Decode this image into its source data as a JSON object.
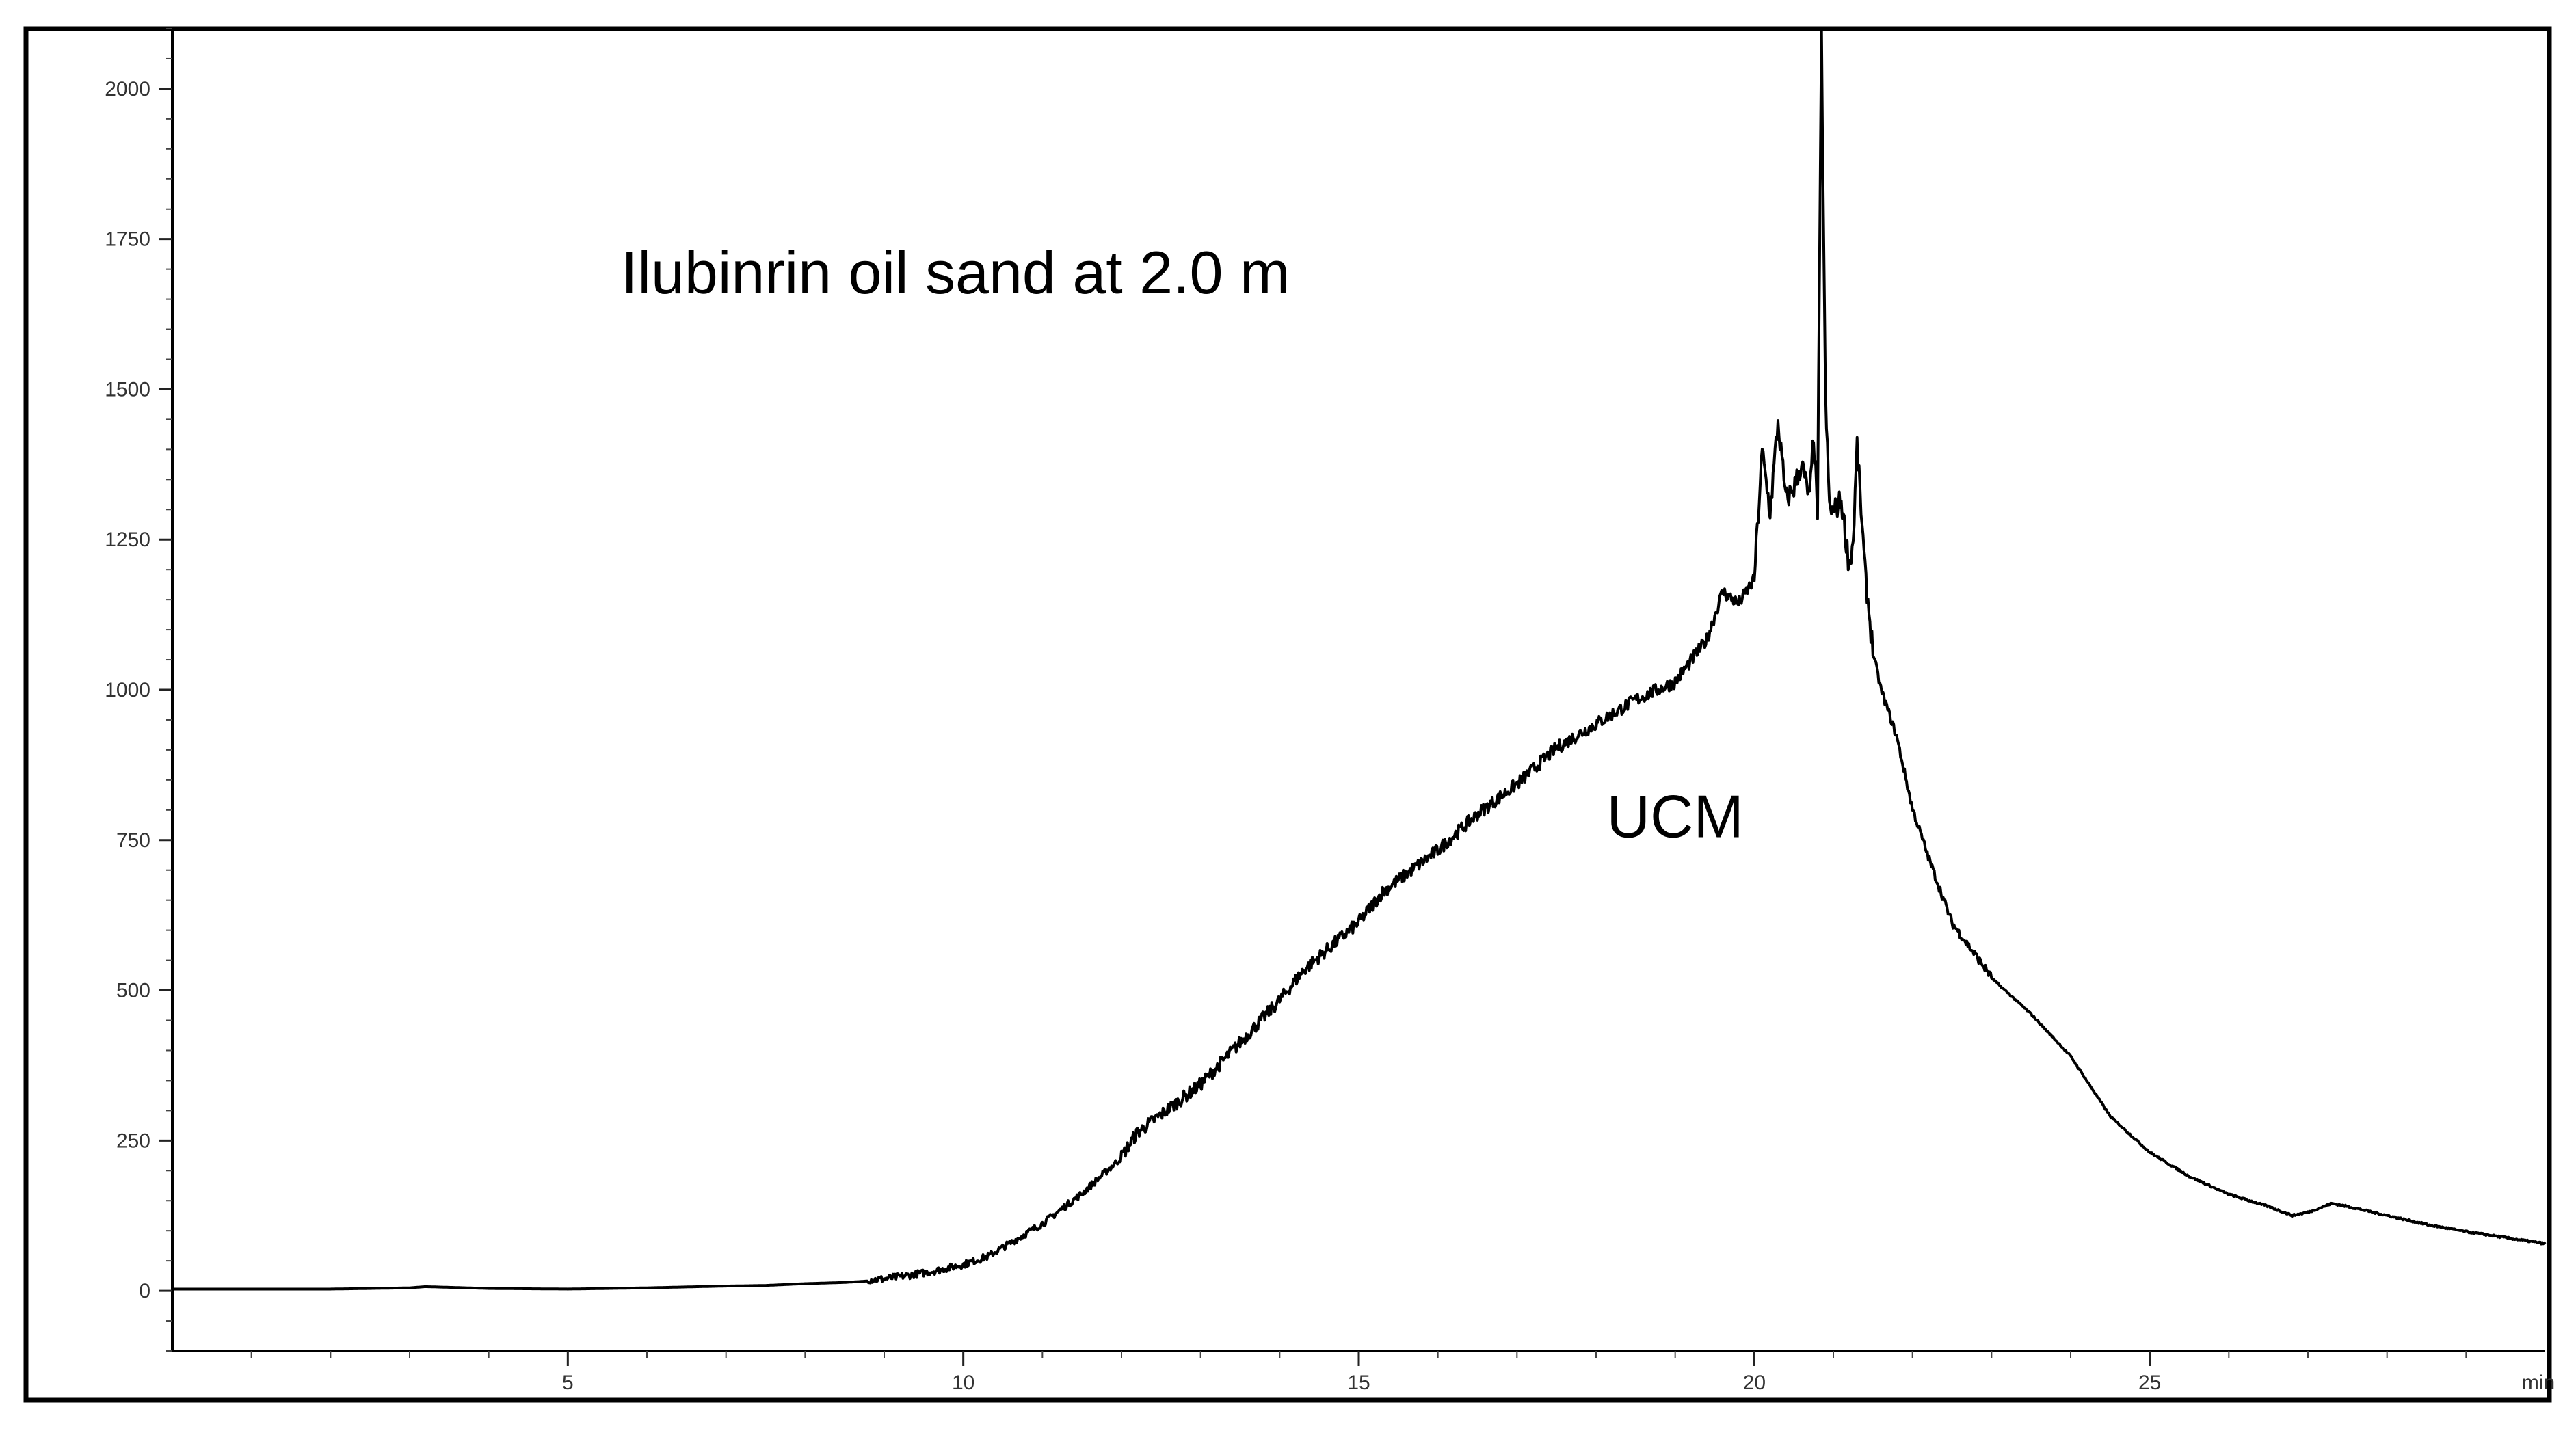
{
  "chart_data": {
    "type": "line",
    "title": "",
    "xlabel": "",
    "ylabel": "",
    "x_unit_label": "min",
    "xlim": [
      0,
      30
    ],
    "ylim": [
      -100,
      2100
    ],
    "grid": false,
    "legend": "none",
    "x_ticks": [
      5,
      10,
      15,
      20,
      25
    ],
    "x_tick_labels": [
      "5",
      "10",
      "15",
      "20",
      "25"
    ],
    "y_ticks": [
      0,
      250,
      500,
      750,
      1000,
      1250,
      1500,
      1750,
      2000
    ],
    "y_tick_labels": [
      "0",
      "250",
      "500",
      "750",
      "1000",
      "1250",
      "1500",
      "1750",
      "2000"
    ],
    "annotations": [
      {
        "text": "Ilubinrin oil sand at 2.0 m",
        "x": 9.9,
        "y": 1660
      },
      {
        "text": "UCM",
        "x": 19.0,
        "y": 755
      }
    ],
    "series": [
      {
        "color": "#000000",
        "x": [
          0,
          1,
          2,
          3,
          3.2,
          4,
          5,
          6,
          7,
          7.5,
          8,
          8.5,
          9,
          9.2,
          9.5,
          9.7,
          10,
          10.3,
          10.6,
          11,
          11.5,
          12,
          12.2,
          12.5,
          13,
          13.5,
          14,
          14.3,
          15,
          15.3,
          15.5,
          16,
          16.5,
          17,
          17.5,
          18,
          18.5,
          19,
          19.4,
          19.6,
          19.8,
          20,
          20.1,
          20.2,
          20.3,
          20.4,
          20.5,
          20.6,
          20.7,
          20.75,
          20.8,
          20.85,
          20.9,
          20.95,
          21,
          21.1,
          21.2,
          21.25,
          21.3,
          21.4,
          21.5,
          21.6,
          21.8,
          22,
          22.2,
          22.5,
          23,
          23.5,
          24,
          24.5,
          25,
          25.5,
          26,
          26.5,
          26.8,
          27,
          27.3,
          27.5,
          28,
          28.5,
          29,
          29.5,
          30
        ],
        "y": [
          3,
          3,
          3,
          5,
          7,
          4,
          3,
          5,
          8,
          9,
          12,
          14,
          18,
          22,
          28,
          33,
          42,
          55,
          78,
          110,
          160,
          220,
          260,
          290,
          340,
          410,
          480,
          530,
          610,
          660,
          680,
          730,
          790,
          840,
          900,
          940,
          980,
          1010,
          1080,
          1160,
          1140,
          1180,
          1390,
          1290,
          1440,
          1310,
          1330,
          1370,
          1310,
          1420,
          1290,
          2080,
          1480,
          1300,
          1290,
          1310,
          1200,
          1240,
          1400,
          1190,
          1060,
          1000,
          920,
          800,
          720,
          610,
          520,
          460,
          390,
          290,
          230,
          190,
          160,
          140,
          125,
          130,
          145,
          140,
          125,
          110,
          98,
          88,
          78
        ]
      }
    ]
  }
}
